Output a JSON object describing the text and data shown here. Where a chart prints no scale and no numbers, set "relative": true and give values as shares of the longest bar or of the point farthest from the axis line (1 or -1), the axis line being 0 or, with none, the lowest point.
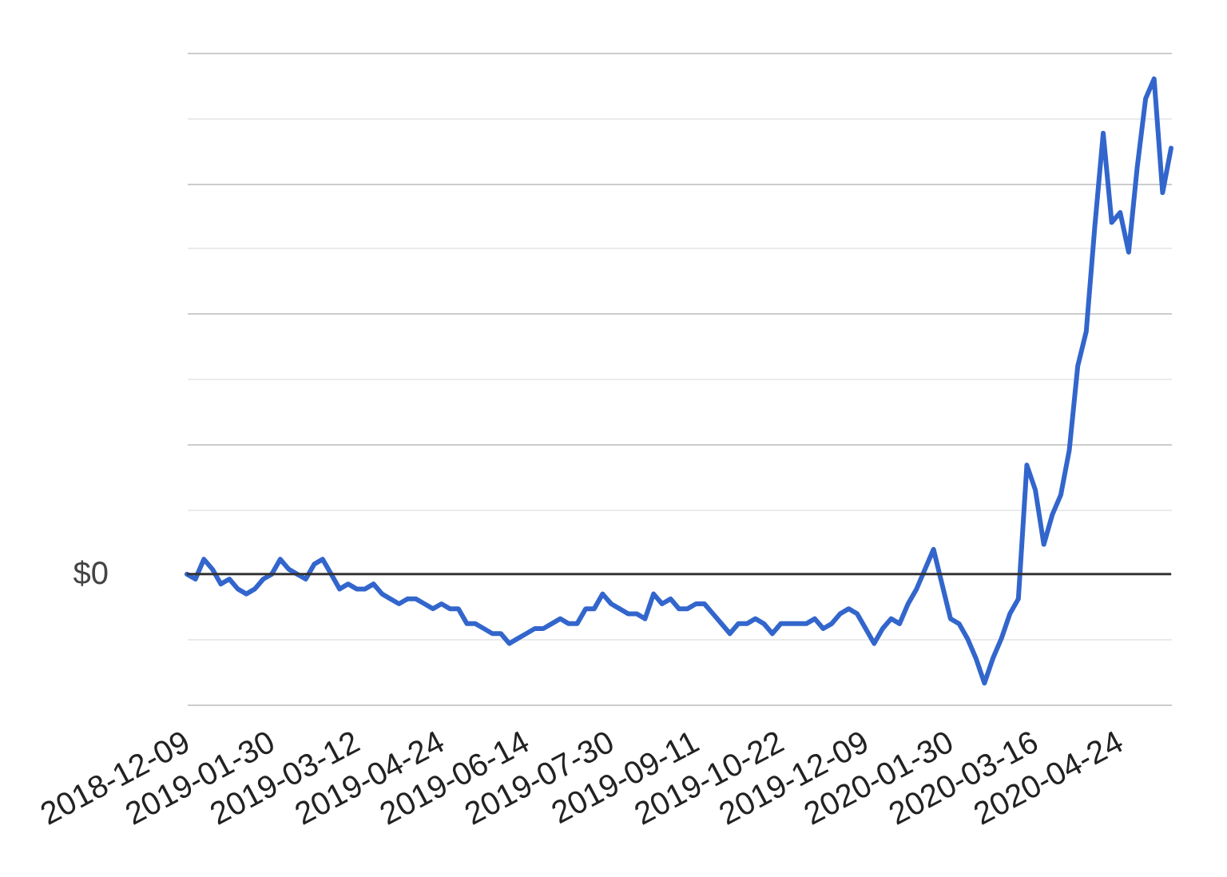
{
  "chart_data": {
    "type": "line",
    "relative": true,
    "categories": [
      "2018-12-09",
      null,
      null,
      null,
      null,
      null,
      null,
      null,
      null,
      null,
      "2019-01-30",
      null,
      null,
      null,
      null,
      null,
      null,
      null,
      null,
      null,
      "2019-03-12",
      null,
      null,
      null,
      null,
      null,
      null,
      null,
      null,
      null,
      "2019-04-24",
      null,
      null,
      null,
      null,
      null,
      null,
      null,
      null,
      null,
      "2019-06-14",
      null,
      null,
      null,
      null,
      null,
      null,
      null,
      null,
      null,
      "2019-07-30",
      null,
      null,
      null,
      null,
      null,
      null,
      null,
      null,
      null,
      "2019-09-11",
      null,
      null,
      null,
      null,
      null,
      null,
      null,
      null,
      null,
      "2019-10-22",
      null,
      null,
      null,
      null,
      null,
      null,
      null,
      null,
      null,
      "2019-12-09",
      null,
      null,
      null,
      null,
      null,
      null,
      null,
      null,
      null,
      "2020-01-30",
      null,
      null,
      null,
      null,
      null,
      null,
      null,
      null,
      null,
      "2020-03-16",
      null,
      null,
      null,
      null,
      null,
      null,
      null,
      null,
      null,
      "2020-04-24",
      null,
      null,
      null,
      null,
      null,
      null
    ],
    "series": [
      {
        "color": "#3366cc",
        "values": [
          0,
          -0.01,
          0.03,
          0.01,
          -0.02,
          -0.01,
          -0.03,
          -0.04,
          -0.03,
          -0.01,
          0,
          0.03,
          0.01,
          0,
          -0.01,
          0.02,
          0.03,
          0,
          -0.03,
          -0.02,
          -0.03,
          -0.03,
          -0.02,
          -0.04,
          -0.05,
          -0.06,
          -0.05,
          -0.05,
          -0.06,
          -0.07,
          -0.06,
          -0.07,
          -0.07,
          -0.1,
          -0.1,
          -0.11,
          -0.12,
          -0.12,
          -0.14,
          -0.13,
          -0.12,
          -0.11,
          -0.11,
          -0.1,
          -0.09,
          -0.1,
          -0.1,
          -0.07,
          -0.07,
          -0.04,
          -0.06,
          -0.07,
          -0.08,
          -0.08,
          -0.09,
          -0.04,
          -0.06,
          -0.05,
          -0.07,
          -0.07,
          -0.06,
          -0.06,
          -0.08,
          -0.1,
          -0.12,
          -0.1,
          -0.1,
          -0.09,
          -0.1,
          -0.12,
          -0.1,
          -0.1,
          -0.1,
          -0.1,
          -0.09,
          -0.11,
          -0.1,
          -0.08,
          -0.07,
          -0.08,
          -0.11,
          -0.14,
          -0.11,
          -0.09,
          -0.1,
          -0.06,
          -0.03,
          0.01,
          0.05,
          -0.02,
          -0.09,
          -0.1,
          -0.13,
          -0.17,
          -0.22,
          -0.17,
          -0.13,
          -0.08,
          -0.05,
          0.22,
          0.17,
          0.06,
          0.12,
          0.16,
          0.25,
          0.42,
          0.49,
          0.7,
          0.89,
          0.71,
          0.73,
          0.65,
          0.82,
          0.96,
          1,
          0.77,
          0.86
        ]
      }
    ],
    "grid": "y",
    "line_style": "solid",
    "ref_lines": [
      {
        "axis": "y",
        "value": 0,
        "label": "$0",
        "color": "#333333"
      }
    ]
  }
}
